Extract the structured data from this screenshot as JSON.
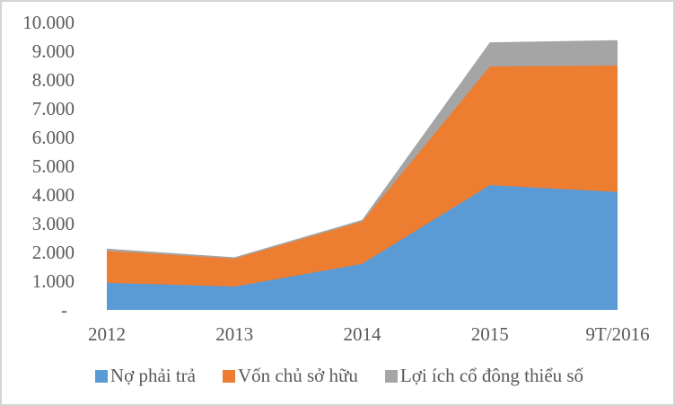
{
  "chart_data": {
    "type": "area",
    "stacked": true,
    "title": "",
    "xlabel": "",
    "ylabel": "",
    "categories": [
      "2012",
      "2013",
      "2014",
      "2015",
      "9T/2016"
    ],
    "series": [
      {
        "name": "Nợ phải trả",
        "color": "#5B9BD5",
        "values": [
          940,
          810,
          1600,
          4340,
          4100
        ]
      },
      {
        "name": "Vốn chủ sở hữu",
        "color": "#ED7D31",
        "values": [
          1110,
          970,
          1470,
          4130,
          4400
        ]
      },
      {
        "name": "Lợi ích cổ đông thiểu số",
        "color": "#A5A5A5",
        "values": [
          80,
          50,
          60,
          840,
          880
        ]
      }
    ],
    "y_axis": {
      "min": 0,
      "max": 10000,
      "tick_step": 1000,
      "tick_labels": [
        "-",
        "1.000",
        "2.000",
        "3.000",
        "4.000",
        "5.000",
        "6.000",
        "7.000",
        "8.000",
        "9.000",
        "10.000"
      ]
    },
    "gridlines": false,
    "legend_position": "bottom"
  },
  "colors": {
    "text": "#595959",
    "frame_border": "#d4d4d4",
    "background": "#ffffff"
  }
}
